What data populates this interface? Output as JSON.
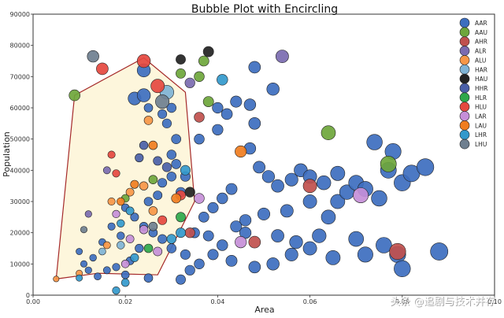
{
  "chart_data": {
    "type": "scatter",
    "title": "Bubble Plot with Encircling",
    "xlabel": "Area",
    "ylabel": "Population",
    "xlim": [
      0.0,
      0.1
    ],
    "ylim": [
      0,
      90000
    ],
    "xticks": [
      "0.00",
      "0.02",
      "0.04",
      "0.06",
      "0.08",
      "0.10"
    ],
    "yticks": [
      "0",
      "10000",
      "20000",
      "30000",
      "40000",
      "50000",
      "60000",
      "70000",
      "80000",
      "90000"
    ],
    "grid": false,
    "legend_position": "top-right",
    "encircle": {
      "category": "IN",
      "fill": "#fdf6dc",
      "edge": "#a52a2a",
      "points": [
        [
          0.005,
          5200
        ],
        [
          0.009,
          64000
        ],
        [
          0.024,
          76000
        ],
        [
          0.033,
          65000
        ],
        [
          0.035,
          30000
        ],
        [
          0.027,
          6500
        ],
        [
          0.014,
          7000
        ]
      ]
    },
    "series": [
      {
        "name": "AAR",
        "color": "#3d6ebf",
        "points": [
          [
            0.022,
            63000
          ],
          [
            0.024,
            64000
          ],
          [
            0.024,
            72000
          ],
          [
            0.025,
            60000
          ],
          [
            0.028,
            58000
          ],
          [
            0.03,
            60000
          ],
          [
            0.029,
            55000
          ],
          [
            0.031,
            50000
          ],
          [
            0.03,
            45000
          ],
          [
            0.031,
            42000
          ],
          [
            0.03,
            38000
          ],
          [
            0.028,
            36000
          ],
          [
            0.033,
            38000
          ],
          [
            0.032,
            33000
          ],
          [
            0.027,
            32000
          ],
          [
            0.025,
            30000
          ],
          [
            0.02,
            28000
          ],
          [
            0.022,
            25000
          ],
          [
            0.024,
            22000
          ],
          [
            0.026,
            20000
          ],
          [
            0.028,
            18000
          ],
          [
            0.03,
            15000
          ],
          [
            0.019,
            19000
          ],
          [
            0.017,
            22000
          ],
          [
            0.015,
            17000
          ],
          [
            0.013,
            12000
          ],
          [
            0.011,
            10000
          ],
          [
            0.01,
            14000
          ],
          [
            0.016,
            8000
          ],
          [
            0.018,
            9000
          ],
          [
            0.021,
            11000
          ],
          [
            0.023,
            15000
          ],
          [
            0.033,
            13000
          ],
          [
            0.035,
            20000
          ],
          [
            0.036,
            50000
          ],
          [
            0.04,
            53000
          ],
          [
            0.042,
            58000
          ],
          [
            0.04,
            60000
          ],
          [
            0.044,
            62000
          ],
          [
            0.048,
            55000
          ],
          [
            0.047,
            61000
          ],
          [
            0.048,
            73000
          ],
          [
            0.052,
            66000
          ],
          [
            0.047,
            47000
          ],
          [
            0.049,
            41000
          ],
          [
            0.051,
            38000
          ],
          [
            0.053,
            35000
          ],
          [
            0.056,
            37000
          ],
          [
            0.058,
            40000
          ],
          [
            0.06,
            30000
          ],
          [
            0.055,
            27000
          ],
          [
            0.05,
            26000
          ],
          [
            0.046,
            24000
          ],
          [
            0.044,
            22000
          ],
          [
            0.043,
            34000
          ],
          [
            0.041,
            31000
          ],
          [
            0.039,
            28000
          ],
          [
            0.037,
            25000
          ],
          [
            0.038,
            19000
          ],
          [
            0.041,
            16000
          ],
          [
            0.046,
            20000
          ],
          [
            0.053,
            19000
          ],
          [
            0.057,
            17000
          ],
          [
            0.062,
            19000
          ],
          [
            0.064,
            25000
          ],
          [
            0.066,
            30000
          ],
          [
            0.068,
            33000
          ],
          [
            0.07,
            36000
          ],
          [
            0.072,
            34000
          ],
          [
            0.075,
            31000
          ],
          [
            0.077,
            40000
          ],
          [
            0.08,
            36000
          ],
          [
            0.082,
            39000
          ],
          [
            0.085,
            41000
          ],
          [
            0.078,
            46000
          ],
          [
            0.074,
            49000
          ],
          [
            0.066,
            39000
          ],
          [
            0.063,
            36000
          ],
          [
            0.06,
            38000
          ],
          [
            0.048,
            9000
          ],
          [
            0.052,
            10000
          ],
          [
            0.056,
            13000
          ],
          [
            0.06,
            15000
          ],
          [
            0.065,
            12000
          ],
          [
            0.07,
            18000
          ],
          [
            0.072,
            13000
          ],
          [
            0.076,
            16000
          ],
          [
            0.079,
            13000
          ],
          [
            0.08,
            8500
          ],
          [
            0.088,
            14000
          ],
          [
            0.043,
            11000
          ],
          [
            0.039,
            13000
          ],
          [
            0.036,
            10000
          ],
          [
            0.034,
            8000
          ],
          [
            0.032,
            5000
          ],
          [
            0.025,
            5500
          ],
          [
            0.02,
            6500
          ],
          [
            0.014,
            6000
          ],
          [
            0.012,
            8000
          ]
        ]
      },
      {
        "name": "AAU",
        "color": "#6ea63b",
        "points": [
          [
            0.009,
            64000
          ],
          [
            0.032,
            71000
          ],
          [
            0.037,
            75000
          ],
          [
            0.036,
            70000
          ],
          [
            0.038,
            62000
          ],
          [
            0.064,
            52000
          ],
          [
            0.077,
            42000
          ],
          [
            0.02,
            31000
          ],
          [
            0.026,
            37000
          ]
        ]
      },
      {
        "name": "AHR",
        "color": "#c0504d",
        "points": [
          [
            0.034,
            20000
          ],
          [
            0.036,
            57000
          ],
          [
            0.048,
            17000
          ],
          [
            0.06,
            35000
          ],
          [
            0.079,
            14000
          ]
        ]
      },
      {
        "name": "ALR",
        "color": "#7b6bb0",
        "points": [
          [
            0.016,
            40000
          ],
          [
            0.034,
            68000
          ],
          [
            0.054,
            76500
          ],
          [
            0.012,
            26000
          ]
        ]
      },
      {
        "name": "ALU",
        "color": "#f79646",
        "points": [
          [
            0.005,
            5200
          ],
          [
            0.017,
            30000
          ],
          [
            0.021,
            33000
          ],
          [
            0.024,
            35000
          ],
          [
            0.025,
            56000
          ],
          [
            0.026,
            27000
          ],
          [
            0.016,
            16000
          ],
          [
            0.01,
            7000
          ]
        ]
      },
      {
        "name": "HAR",
        "color": "#7fb3d5",
        "points": [
          [
            0.029,
            65000
          ],
          [
            0.015,
            14000
          ],
          [
            0.019,
            16000
          ]
        ]
      },
      {
        "name": "HAU",
        "color": "#222222",
        "points": [
          [
            0.032,
            75500
          ],
          [
            0.038,
            78000
          ],
          [
            0.034,
            33000
          ]
        ]
      },
      {
        "name": "HHR",
        "color": "#4a5fa8",
        "points": [
          [
            0.024,
            48000
          ],
          [
            0.023,
            44000
          ],
          [
            0.029,
            41000
          ],
          [
            0.027,
            43000
          ]
        ]
      },
      {
        "name": "HLR",
        "color": "#2ea84a",
        "points": [
          [
            0.025,
            15000
          ],
          [
            0.032,
            25000
          ]
        ]
      },
      {
        "name": "HLU",
        "color": "#e5483f",
        "points": [
          [
            0.015,
            72500
          ],
          [
            0.024,
            75000
          ],
          [
            0.027,
            67000
          ],
          [
            0.017,
            45000
          ],
          [
            0.018,
            39000
          ],
          [
            0.032,
            32000
          ],
          [
            0.028,
            24000
          ]
        ]
      },
      {
        "name": "LAR",
        "color": "#c58fd8",
        "points": [
          [
            0.018,
            26000
          ],
          [
            0.021,
            18000
          ],
          [
            0.024,
            21000
          ],
          [
            0.02,
            10000
          ],
          [
            0.027,
            14000
          ],
          [
            0.036,
            31000
          ],
          [
            0.045,
            17000
          ],
          [
            0.071,
            32000
          ]
        ]
      },
      {
        "name": "LAU",
        "color": "#f07d1f",
        "points": [
          [
            0.019,
            30000
          ],
          [
            0.022,
            35500
          ],
          [
            0.031,
            31000
          ],
          [
            0.026,
            48000
          ],
          [
            0.045,
            46000
          ]
        ]
      },
      {
        "name": "LHR",
        "color": "#3399cc",
        "points": [
          [
            0.021,
            27000
          ],
          [
            0.019,
            23000
          ],
          [
            0.022,
            12000
          ],
          [
            0.03,
            18000
          ],
          [
            0.032,
            20000
          ],
          [
            0.02,
            4000
          ],
          [
            0.01,
            5500
          ],
          [
            0.018,
            1500
          ],
          [
            0.041,
            69000
          ],
          [
            0.033,
            40000
          ]
        ]
      },
      {
        "name": "LHU",
        "color": "#6f7f8f",
        "points": [
          [
            0.013,
            76500
          ],
          [
            0.028,
            62000
          ],
          [
            0.011,
            21000
          ],
          [
            0.026,
            22000
          ]
        ]
      }
    ]
  },
  "watermark": {
    "text": "头条 @追剧与技术并存"
  }
}
